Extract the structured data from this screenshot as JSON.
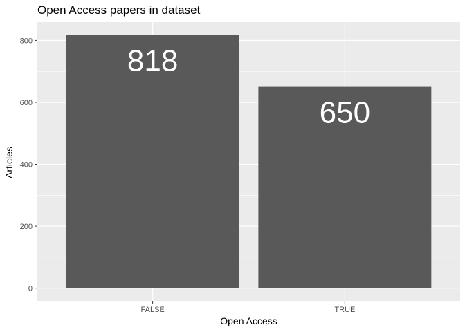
{
  "chart_data": {
    "type": "bar",
    "title": "Open Access papers in dataset",
    "xlabel": "Open Access",
    "ylabel": "Articles",
    "categories": [
      "FALSE",
      "TRUE"
    ],
    "values": [
      818,
      650
    ],
    "data_labels": [
      "818",
      "650"
    ],
    "ylim": [
      -41,
      859
    ],
    "yticks": [
      0,
      200,
      400,
      600,
      800
    ],
    "grid": true,
    "legend": "none",
    "colors": {
      "bar": "#595959",
      "panel_background": "#ebebeb",
      "grid_major": "#ffffff",
      "data_label": "#ffffff",
      "tick_label": "#4d4d4d"
    }
  }
}
